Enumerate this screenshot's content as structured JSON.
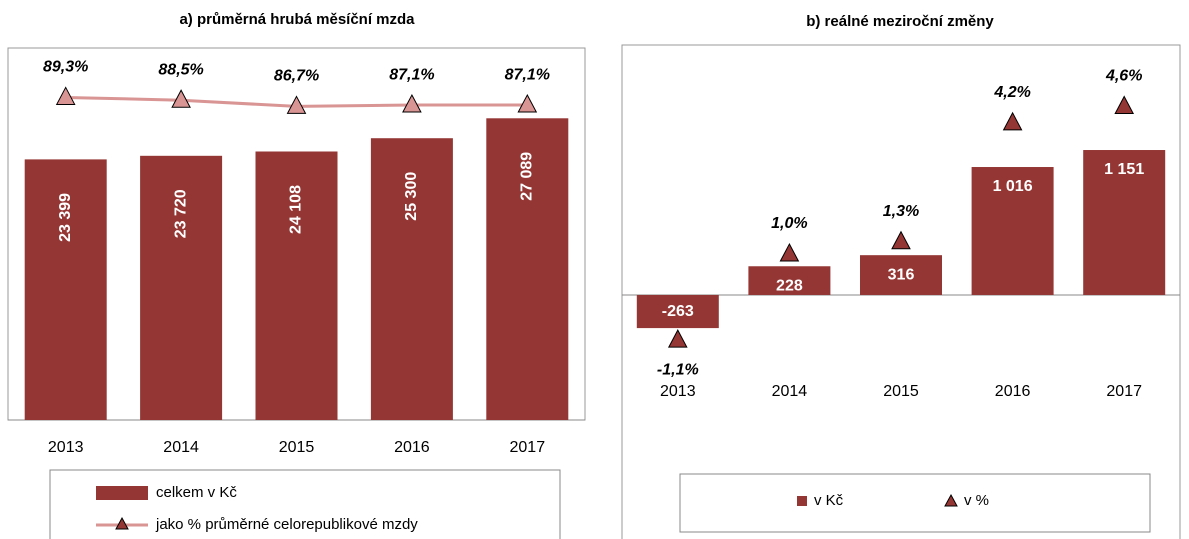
{
  "chart_data": [
    {
      "type": "bar",
      "title": "a) průměrná hrubá měsíční mzda",
      "categories": [
        "2013",
        "2014",
        "2015",
        "2016",
        "2017"
      ],
      "series": [
        {
          "name": "celkem v Kč",
          "type": "bar",
          "color": "#943634",
          "values": [
            23399,
            23720,
            24108,
            25300,
            27089
          ],
          "value_labels": [
            "23 399",
            "23 720",
            "24 108",
            "25 300",
            "27 089"
          ]
        },
        {
          "name": "jako % průměrné celorepublikové mzdy",
          "type": "line",
          "axis": "y2",
          "color": "#d99594",
          "values": [
            89.3,
            88.5,
            86.7,
            87.1,
            87.1
          ],
          "value_labels": [
            "89,3%",
            "88,5%",
            "86,7%",
            "87,1%",
            "87,1%"
          ]
        }
      ],
      "ylim": [
        0,
        33400
      ],
      "y2lim": [
        -4,
        103.6
      ]
    },
    {
      "type": "bar",
      "title": "b) reálné meziroční změny",
      "categories": [
        "2013",
        "2014",
        "2015",
        "2016",
        "2017"
      ],
      "series": [
        {
          "name": "v Kč",
          "type": "bar",
          "color": "#943634",
          "values": [
            -263,
            228,
            316,
            1016,
            1151
          ],
          "value_labels": [
            "-263",
            "228",
            "316",
            "1 016",
            "1 151"
          ]
        },
        {
          "name": "v %",
          "type": "markers",
          "axis": "y2",
          "color": "#943634",
          "values": [
            -1.1,
            1.0,
            1.3,
            4.2,
            4.6
          ],
          "value_labels": [
            "-1,1%",
            "1,0%",
            "1,3%",
            "4,2%",
            "4,6%"
          ]
        }
      ],
      "ylim": [
        -1914,
        1985
      ],
      "y2lim": [
        -5.88,
        6.1
      ]
    }
  ]
}
